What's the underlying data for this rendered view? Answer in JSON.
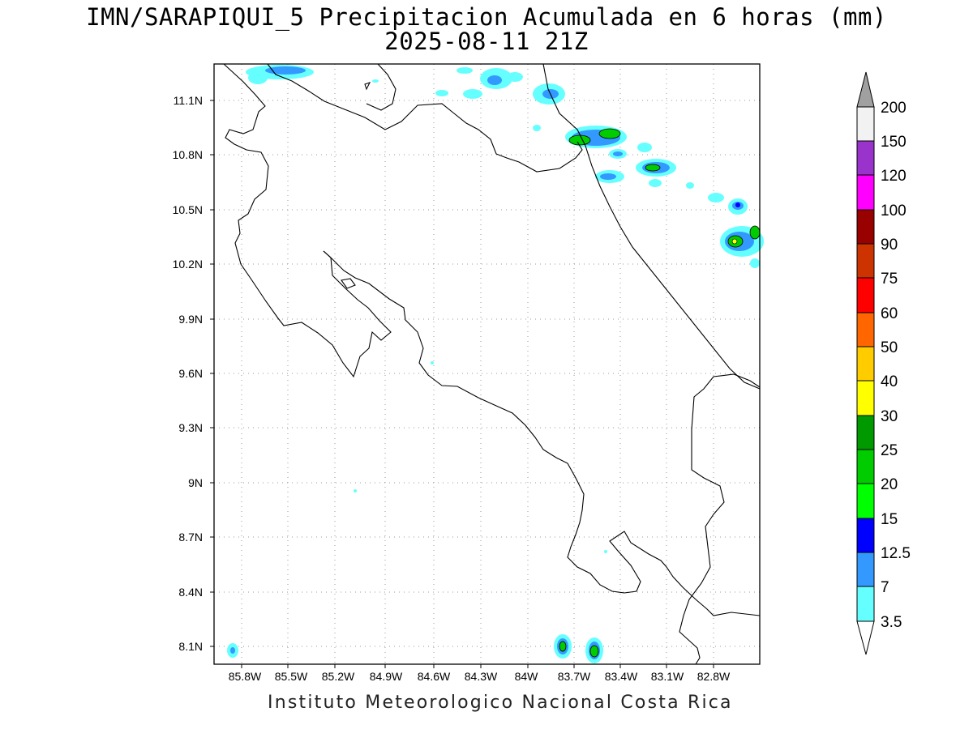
{
  "title": "IMN/SARAPIQUI_5 Precipitacion Acumulada en 6 horas (mm)",
  "subtitle": "2025-08-11 21Z",
  "footer": "Instituto Meteorologico Nacional Costa Rica",
  "map": {
    "lon_range": [
      -86.0,
      -82.6
    ],
    "lat_range": [
      8.0,
      11.3
    ],
    "lon_ticks": [
      "85.8W",
      "85.5W",
      "85.2W",
      "84.9W",
      "84.6W",
      "84.3W",
      "84W",
      "83.7W",
      "83.4W",
      "83.1W",
      "82.8W"
    ],
    "lat_ticks": [
      "11.1N",
      "10.8N",
      "10.5N",
      "10.2N",
      "9.9N",
      "9.6N",
      "9.3N",
      "9N",
      "8.7N",
      "8.4N",
      "8.1N"
    ],
    "grid": true
  },
  "colorbar": {
    "labels": [
      "3.5",
      "7",
      "12.5",
      "15",
      "20",
      "25",
      "30",
      "40",
      "50",
      "60",
      "75",
      "90",
      "100",
      "120",
      "150",
      "200"
    ],
    "colors": [
      "#66ffff",
      "#3399ff",
      "#0000ff",
      "#00ff00",
      "#00cc00",
      "#009900",
      "#ffff00",
      "#ffcc00",
      "#ff6600",
      "#ff0000",
      "#cc3300",
      "#990000",
      "#ff00ff",
      "#9933cc",
      "#f2f2f2",
      "#a0a0a0"
    ]
  }
}
